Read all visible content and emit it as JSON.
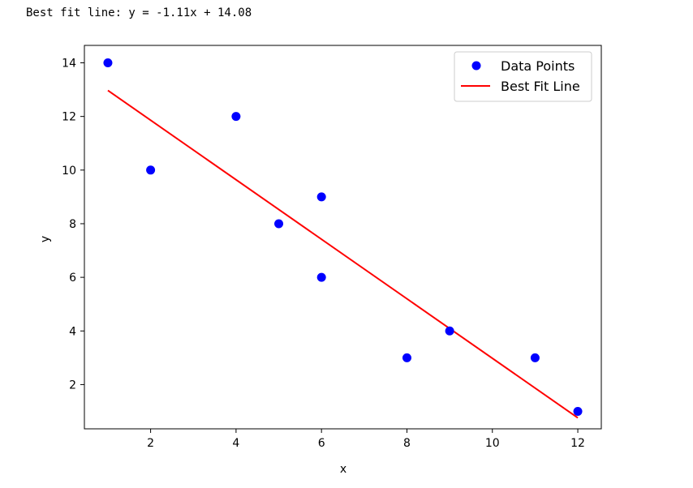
{
  "output": {
    "text": "Best fit line: y = -1.11x + 14.08"
  },
  "chart_data": {
    "type": "scatter",
    "title": "",
    "xlabel": "x",
    "ylabel": "y",
    "xlim": [
      0.45,
      12.55
    ],
    "ylim": [
      0.35,
      14.65
    ],
    "xticks": [
      2,
      4,
      6,
      8,
      10,
      12
    ],
    "yticks": [
      2,
      4,
      6,
      8,
      10,
      12,
      14
    ],
    "grid": false,
    "legend": {
      "position": "top-right",
      "entries": [
        "Data Points",
        "Best Fit Line"
      ]
    },
    "series": [
      {
        "name": "Data Points",
        "kind": "scatter",
        "color": "#0000ff",
        "points": [
          {
            "x": 1,
            "y": 14
          },
          {
            "x": 2,
            "y": 10
          },
          {
            "x": 4,
            "y": 12
          },
          {
            "x": 5,
            "y": 8
          },
          {
            "x": 6,
            "y": 9
          },
          {
            "x": 6,
            "y": 6
          },
          {
            "x": 8,
            "y": 3
          },
          {
            "x": 9,
            "y": 4
          },
          {
            "x": 11,
            "y": 3
          },
          {
            "x": 12,
            "y": 1
          }
        ]
      },
      {
        "name": "Best Fit Line",
        "kind": "line",
        "color": "#ff0000",
        "points": [
          {
            "x": 1,
            "y": 12.97
          },
          {
            "x": 12,
            "y": 0.76
          }
        ]
      }
    ]
  }
}
